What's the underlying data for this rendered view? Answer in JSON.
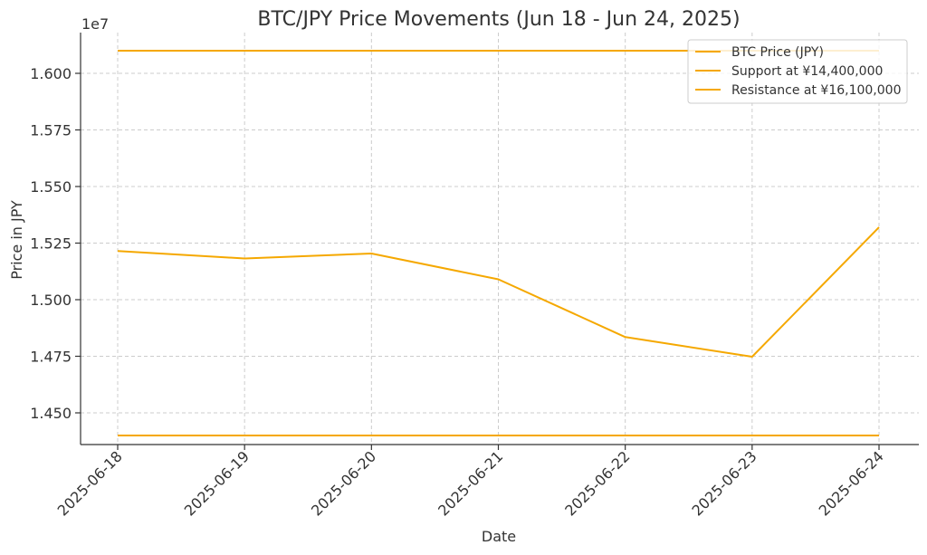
{
  "chart_data": {
    "type": "line",
    "title": "BTC/JPY Price Movements (Jun 18 - Jun 24, 2025)",
    "xlabel": "Date",
    "ylabel": "Price in JPY",
    "y_offset_label": "1e7",
    "categories": [
      "2025-06-18",
      "2025-06-19",
      "2025-06-20",
      "2025-06-21",
      "2025-06-22",
      "2025-06-23",
      "2025-06-24"
    ],
    "y_ticks": [
      14500000,
      14750000,
      15000000,
      15250000,
      15500000,
      15750000,
      16000000
    ],
    "y_tick_labels": [
      "1.450",
      "1.475",
      "1.500",
      "1.525",
      "1.550",
      "1.575",
      "1.600"
    ],
    "ylim": [
      14360000,
      16180000
    ],
    "grid": true,
    "legend_position": "top-right",
    "series": [
      {
        "name": "BTC Price (JPY)",
        "values": [
          15215000,
          15182000,
          15204000,
          15090000,
          14835000,
          14748000,
          15320000
        ],
        "color": "#f5a800",
        "opacity": 1
      },
      {
        "name": "Support at ¥14,400,000",
        "values": [
          14400000,
          14400000,
          14400000,
          14400000,
          14400000,
          14400000,
          14400000
        ],
        "color": "#f5a800",
        "opacity": 1
      },
      {
        "name": "Resistance at ¥16,100,000",
        "values": [
          16100000,
          16100000,
          16100000,
          16100000,
          16100000,
          16100000,
          16100000
        ],
        "color": "#f5a800",
        "opacity": 1
      }
    ]
  }
}
